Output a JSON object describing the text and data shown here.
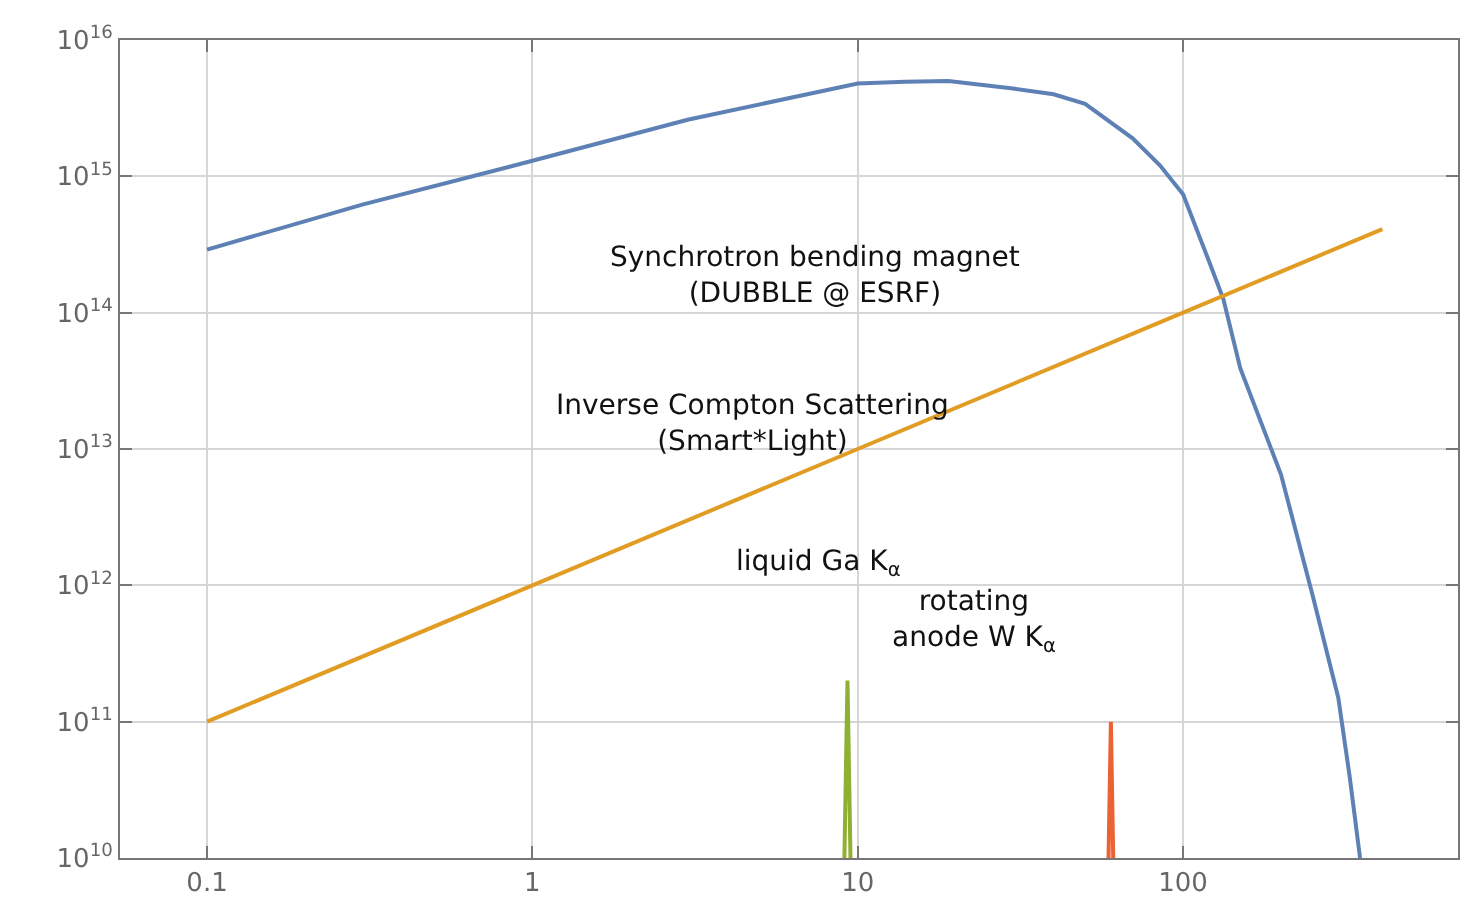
{
  "chart_data": {
    "type": "line",
    "log": "xy",
    "grid": true,
    "xlim": [
      0.054,
      700
    ],
    "ylim": [
      10000000000.0,
      1e+16
    ],
    "xticks": [
      0.1,
      1,
      10,
      100
    ],
    "yticks": [
      {
        "value": 10000000000.0,
        "label": "10$^{10}$"
      },
      {
        "value": 100000000000.0,
        "label": "10$^{11}$"
      },
      {
        "value": 1000000000000.0,
        "label": "10$^{12}$"
      },
      {
        "value": 10000000000000.0,
        "label": "10$^{13}$"
      },
      {
        "value": 100000000000000.0,
        "label": "10$^{14}$"
      },
      {
        "value": 1000000000000000.0,
        "label": "10$^{15}$"
      },
      {
        "value": 1e+16,
        "label": "10$^{16}$"
      }
    ],
    "series": [
      {
        "color": "#5e81b5",
        "x": [
          0.1,
          0.3,
          1,
          3,
          10,
          14,
          19,
          30,
          40,
          50,
          70,
          85,
          100,
          120,
          133,
          150,
          200,
          250,
          300,
          325,
          350
        ],
        "values": [
          290000000000000.0,
          620000000000000.0,
          1300000000000000.0,
          2600000000000000.0,
          4800000000000000.0,
          4950000000000000.0,
          5000000000000000.0,
          4400000000000000.0,
          4000000000000000.0,
          3400000000000000.0,
          1900000000000000.0,
          1200000000000000.0,
          740000000000000.0,
          240000000000000.0,
          126000000000000.0,
          39000000000000.0,
          6500000000000.0,
          850000000000.0,
          150000000000.0,
          40000000000.0,
          10000000000.0
        ]
      },
      {
        "color": "#e19c24",
        "x": [
          0.1,
          1,
          10,
          100,
          410
        ],
        "values": [
          100000000000.0,
          1000000000000.0,
          10000000000000.0,
          100000000000000.0,
          410000000000000.0
        ]
      },
      {
        "color": "#8fb032",
        "x": [
          9.1,
          9.3,
          9.5
        ],
        "values": [
          10000000000.0,
          200000000000.0,
          10000000000.0
        ]
      },
      {
        "color": "#eb6235",
        "x": [
          59,
          60,
          61
        ],
        "values": [
          10000000000.0,
          100000000000.0,
          10000000000.0
        ]
      }
    ],
    "annotations": [
      "Synchrotron bending magnet\n(DUBBLE @ ESRF)",
      "Inverse Compton Scattering\n(Smart*Light)",
      "liquid Ga K$_{α}$",
      "rotating\nanode W K$_{α}$"
    ]
  }
}
